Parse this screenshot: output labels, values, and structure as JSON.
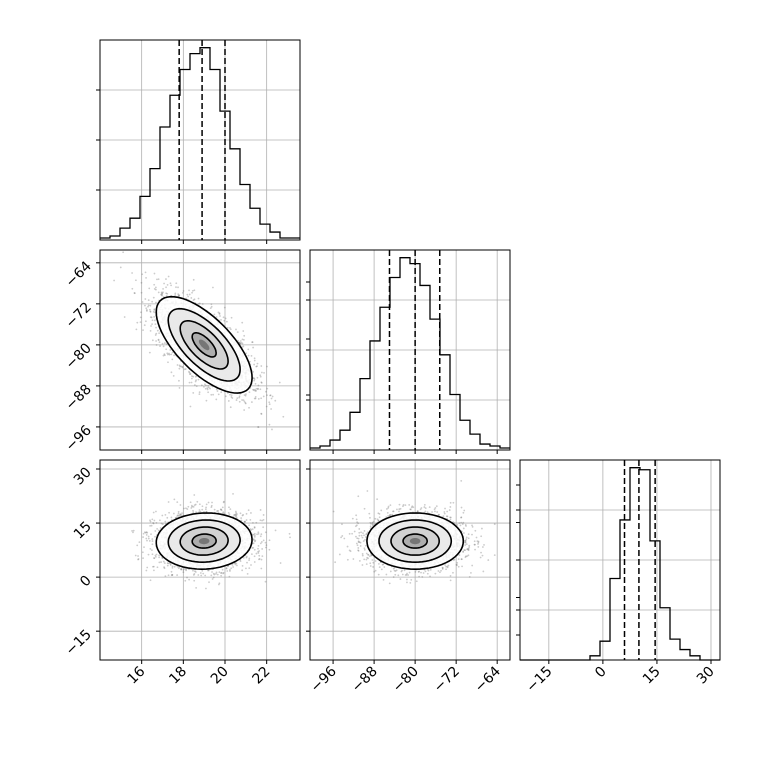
{
  "chart_data": {
    "type": "corner",
    "parameters": [
      {
        "id": "p0",
        "range": [
          14.0,
          23.6
        ],
        "ticks": [
          16,
          18,
          20,
          22
        ],
        "tick_labels": [
          "16",
          "18",
          "20",
          "22"
        ],
        "quantiles": [
          17.8,
          18.9,
          20.0
        ],
        "histogram": {
          "edges": [
            14.0,
            14.48,
            14.96,
            15.44,
            15.92,
            16.4,
            16.88,
            17.36,
            17.84,
            18.32,
            18.8,
            19.28,
            19.76,
            20.24,
            20.72,
            21.2,
            21.68,
            22.16,
            22.64,
            23.12,
            23.6
          ],
          "counts": [
            1,
            2,
            6,
            11,
            22,
            36,
            57,
            73,
            86,
            94,
            97,
            86,
            65,
            46,
            28,
            16,
            8,
            4,
            1,
            1
          ]
        }
      },
      {
        "id": "p1",
        "range": [
          -100.5,
          -61.5
        ],
        "ticks": [
          -96,
          -88,
          -80,
          -72,
          -64
        ],
        "tick_labels": [
          "−96",
          "−88",
          "−80",
          "−72",
          "−64"
        ],
        "quantiles": [
          -85.0,
          -80.0,
          -75.2
        ],
        "histogram": {
          "edges": [
            -100.5,
            -98.55,
            -96.6,
            -94.65,
            -92.7,
            -90.75,
            -88.8,
            -86.85,
            -84.9,
            -82.95,
            -81.0,
            -79.05,
            -77.1,
            -75.15,
            -73.2,
            -71.25,
            -69.3,
            -67.35,
            -65.4,
            -63.45,
            -61.5
          ],
          "counts": [
            1,
            2,
            5,
            10,
            19,
            36,
            55,
            72,
            87,
            97,
            94,
            83,
            66,
            48,
            28,
            15,
            8,
            3,
            2,
            1
          ]
        }
      },
      {
        "id": "p2",
        "range": [
          -23.0,
          32.5
        ],
        "ticks": [
          -15,
          0,
          15,
          30
        ],
        "tick_labels": [
          "−15",
          "0",
          "15",
          "30"
        ],
        "quantiles": [
          6.0,
          10.0,
          14.5
        ],
        "histogram": {
          "edges": [
            -23.0,
            -20.225,
            -17.45,
            -14.675,
            -11.9,
            -9.125,
            -6.35,
            -3.575,
            -0.8,
            1.975,
            4.75,
            7.525,
            10.3,
            13.075,
            15.85,
            18.625,
            21.4,
            24.175,
            26.95,
            29.725,
            32.5
          ],
          "counts": [
            0,
            0,
            0,
            0,
            0,
            0,
            0,
            2,
            9,
            39,
            67,
            92,
            91,
            57,
            25,
            10,
            5,
            2,
            0,
            0
          ]
        }
      }
    ],
    "pairs": [
      {
        "x": "p0",
        "y": "p1",
        "center": [
          19.0,
          -80.0
        ],
        "sigma": [
          1.15,
          4.7
        ],
        "correlation": -0.68
      },
      {
        "x": "p0",
        "y": "p2",
        "center": [
          19.0,
          10.0
        ],
        "sigma": [
          1.15,
          3.9
        ],
        "correlation": 0.05
      },
      {
        "x": "p1",
        "y": "p2",
        "center": [
          -80.0,
          10.0
        ],
        "sigma": [
          4.7,
          3.9
        ],
        "correlation": 0.0
      }
    ],
    "contour_levels_sigma": [
      0.5,
      1.0,
      1.5,
      2.0
    ],
    "grid": true,
    "quantile_line_style": "dashed",
    "colors": {
      "line": "#000000",
      "grid": "#b0b0b0",
      "points": "#6e6e6e"
    }
  }
}
